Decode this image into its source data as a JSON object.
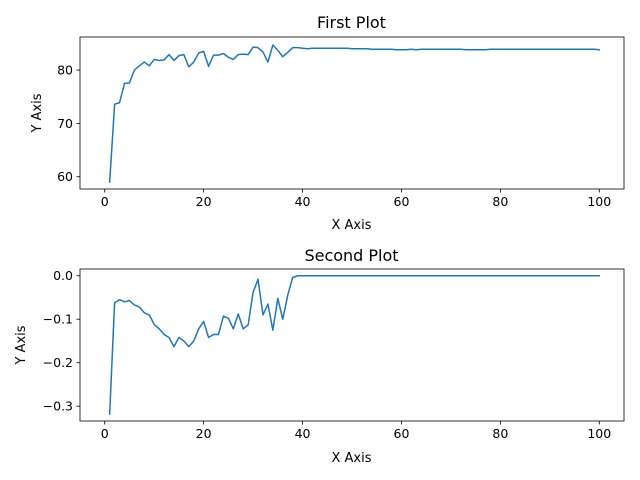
{
  "chart_data": [
    {
      "type": "line",
      "title": "First Plot",
      "xlabel": "X Axis",
      "ylabel": "Y Axis",
      "xlim": [
        -5,
        105
      ],
      "ylim": [
        57.7,
        86.2
      ],
      "xticks": [
        0,
        20,
        40,
        60,
        80,
        100
      ],
      "yticks": [
        60,
        70,
        80
      ],
      "grid": false,
      "color": "#1f77b4",
      "series": [
        {
          "x": [
            1,
            2,
            3,
            4,
            5,
            6,
            7,
            8,
            9,
            10,
            11,
            12,
            13,
            14,
            15,
            16,
            17,
            18,
            19,
            20,
            21,
            22,
            23,
            24,
            25,
            26,
            27,
            28,
            29,
            30,
            31,
            32,
            33,
            34,
            35,
            36,
            37,
            38,
            39,
            40,
            41,
            42,
            43,
            44,
            45,
            46,
            47,
            48,
            49,
            50,
            51,
            52,
            53,
            54,
            55,
            56,
            57,
            58,
            59,
            60,
            61,
            62,
            63,
            64,
            65,
            66,
            67,
            68,
            69,
            70,
            71,
            72,
            73,
            74,
            75,
            76,
            77,
            78,
            79,
            80,
            81,
            82,
            83,
            84,
            85,
            86,
            87,
            88,
            89,
            90,
            91,
            92,
            93,
            94,
            95,
            96,
            97,
            98,
            99,
            100
          ],
          "values": [
            59.0,
            73.6,
            73.9,
            77.5,
            77.6,
            80.0,
            80.8,
            81.5,
            80.8,
            82.0,
            81.8,
            81.9,
            82.9,
            81.8,
            82.7,
            82.9,
            80.6,
            81.5,
            83.2,
            83.5,
            80.7,
            82.8,
            82.8,
            83.1,
            82.4,
            82.0,
            82.9,
            83.0,
            82.9,
            84.3,
            84.2,
            83.4,
            81.5,
            84.7,
            83.7,
            82.5,
            83.3,
            84.2,
            84.2,
            84.1,
            84.0,
            84.1,
            84.1,
            84.1,
            84.1,
            84.1,
            84.1,
            84.1,
            84.1,
            84.0,
            84.0,
            84.0,
            84.0,
            83.9,
            83.9,
            83.9,
            83.9,
            83.9,
            83.8,
            83.8,
            83.8,
            83.9,
            83.8,
            83.9,
            83.9,
            83.9,
            83.9,
            83.9,
            83.9,
            83.9,
            83.9,
            83.9,
            83.8,
            83.8,
            83.8,
            83.8,
            83.8,
            83.9,
            83.9,
            83.9,
            83.9,
            83.9,
            83.9,
            83.9,
            83.9,
            83.9,
            83.9,
            83.9,
            83.9,
            83.9,
            83.9,
            83.9,
            83.9,
            83.9,
            83.9,
            83.9,
            83.9,
            83.9,
            83.9,
            83.8
          ]
        }
      ]
    },
    {
      "type": "line",
      "title": "Second Plot",
      "xlabel": "X Axis",
      "ylabel": "Y Axis",
      "xlim": [
        -5,
        105
      ],
      "ylim": [
        -0.334,
        0.0155
      ],
      "xticks": [
        0,
        20,
        40,
        60,
        80,
        100
      ],
      "yticks": [
        -0.3,
        -0.2,
        -0.1,
        0.0
      ],
      "yticklabels": [
        "−0.3",
        "−0.2",
        "−0.1",
        "0.0"
      ],
      "grid": false,
      "color": "#1f77b4",
      "series": [
        {
          "x": [
            1,
            2,
            3,
            4,
            5,
            6,
            7,
            8,
            9,
            10,
            11,
            12,
            13,
            14,
            15,
            16,
            17,
            18,
            19,
            20,
            21,
            22,
            23,
            24,
            25,
            26,
            27,
            28,
            29,
            30,
            31,
            32,
            33,
            34,
            35,
            36,
            37,
            38,
            39,
            40,
            41,
            42,
            43,
            44,
            45,
            46,
            47,
            48,
            49,
            50,
            51,
            52,
            53,
            54,
            55,
            56,
            57,
            58,
            59,
            60,
            61,
            62,
            63,
            64,
            65,
            66,
            67,
            68,
            69,
            70,
            71,
            72,
            73,
            74,
            75,
            76,
            77,
            78,
            79,
            80,
            81,
            82,
            83,
            84,
            85,
            86,
            87,
            88,
            89,
            90,
            91,
            92,
            93,
            94,
            95,
            96,
            97,
            98,
            99,
            100
          ],
          "values": [
            -0.318,
            -0.062,
            -0.055,
            -0.06,
            -0.057,
            -0.067,
            -0.072,
            -0.085,
            -0.09,
            -0.112,
            -0.122,
            -0.135,
            -0.142,
            -0.163,
            -0.142,
            -0.15,
            -0.163,
            -0.15,
            -0.122,
            -0.105,
            -0.142,
            -0.135,
            -0.135,
            -0.093,
            -0.098,
            -0.122,
            -0.088,
            -0.122,
            -0.113,
            -0.038,
            -0.008,
            -0.09,
            -0.065,
            -0.125,
            -0.052,
            -0.1,
            -0.045,
            -0.004,
            0.0,
            0.0,
            0.0,
            0.0,
            0.0,
            0.0,
            0.0,
            0.0,
            0.0,
            0.0,
            0.0,
            0.0,
            0.0,
            0.0,
            0.0,
            0.0,
            0.0,
            0.0,
            0.0,
            0.0,
            0.0,
            0.0,
            0.0,
            0.0,
            0.0,
            0.0,
            0.0,
            0.0,
            0.0,
            0.0,
            0.0,
            0.0,
            0.0,
            0.0,
            0.0,
            0.0,
            0.0,
            0.0,
            0.0,
            0.0,
            0.0,
            0.0,
            0.0,
            0.0,
            0.0,
            0.0,
            0.0,
            0.0,
            0.0,
            0.0,
            0.0,
            0.0,
            0.0,
            0.0,
            0.0,
            0.0,
            0.0,
            0.0,
            0.0,
            0.0,
            0.0,
            0.0
          ]
        }
      ]
    }
  ]
}
